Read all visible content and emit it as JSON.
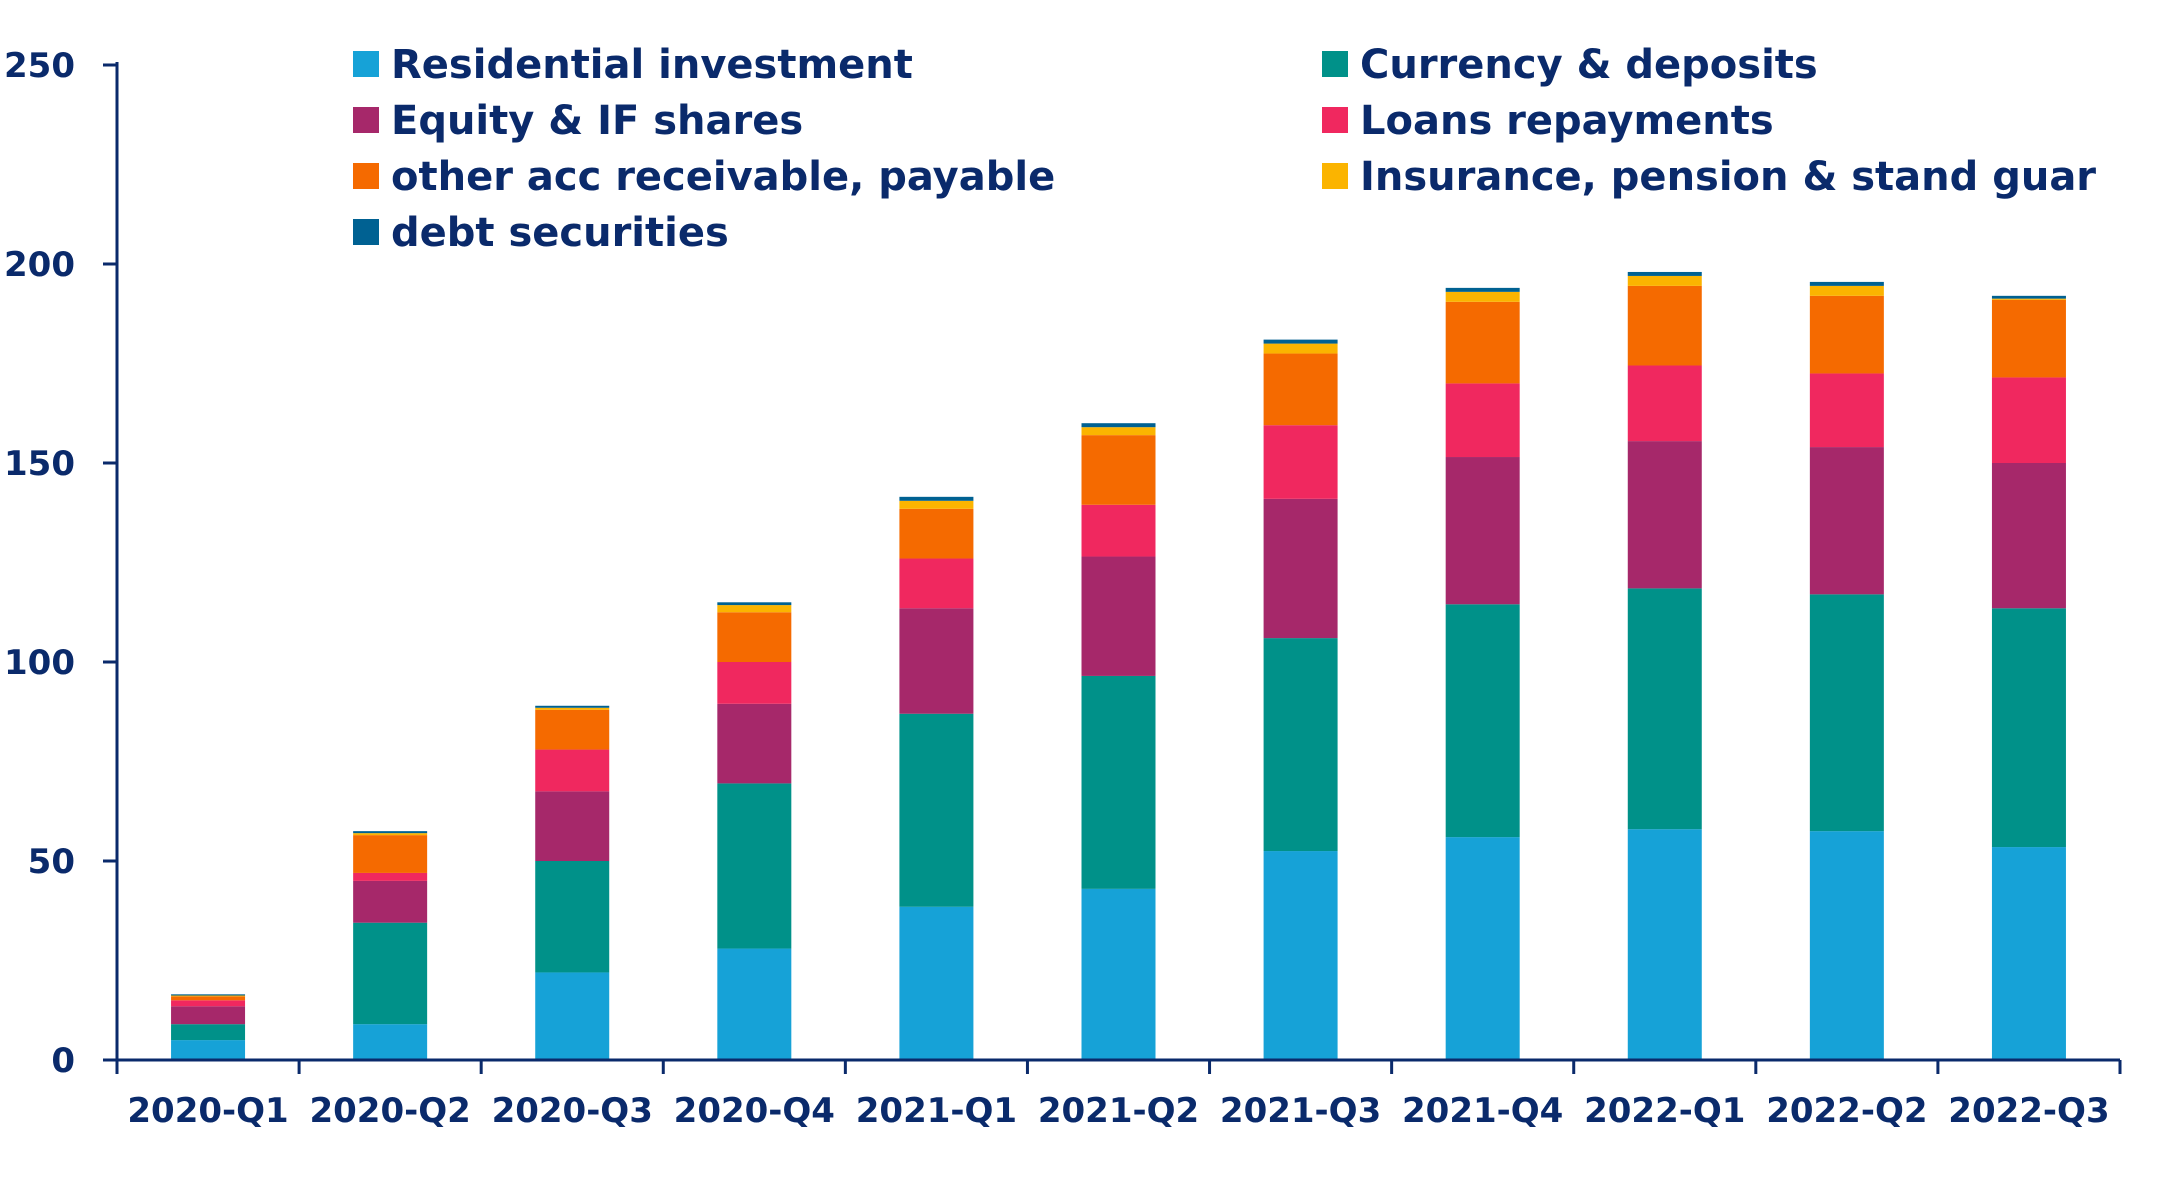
{
  "chart_data": {
    "type": "bar",
    "stacked": true,
    "categories": [
      "2020-Q1",
      "2020-Q2",
      "2020-Q3",
      "2020-Q4",
      "2021-Q1",
      "2021-Q2",
      "2021-Q3",
      "2021-Q4",
      "2022-Q1",
      "2022-Q2",
      "2022-Q3"
    ],
    "ylim": [
      0,
      250
    ],
    "yticks": [
      0,
      50,
      100,
      150,
      200,
      250
    ],
    "grid": false,
    "legend_position": "top",
    "series": [
      {
        "name": "Residential investment",
        "color": "#16a2d7",
        "values": [
          5,
          9,
          22,
          28,
          38.5,
          43,
          52.5,
          56,
          58,
          57.5,
          53.5
        ]
      },
      {
        "name": "Currency & deposits",
        "color": "#009189",
        "values": [
          4,
          25.5,
          28,
          41.5,
          48.5,
          53.5,
          53.5,
          58.5,
          60.5,
          59.5,
          60
        ]
      },
      {
        "name": "Equity & IF shares",
        "color": "#a6286a",
        "values": [
          4.5,
          10.5,
          17.5,
          20,
          26.5,
          30,
          35,
          37,
          37,
          37,
          36.5
        ]
      },
      {
        "name": "Loans repayments",
        "color": "#f0285f",
        "values": [
          1.5,
          2,
          10.5,
          10.5,
          12.5,
          13,
          18.5,
          18.5,
          19,
          18.5,
          21.5
        ]
      },
      {
        "name": "other acc receivable, payable",
        "color": "#f56a00",
        "values": [
          1,
          9.5,
          10,
          12.5,
          12.5,
          17.5,
          18,
          20.5,
          20,
          19.5,
          19.5
        ]
      },
      {
        "name": "Insurance, pension & stand guar",
        "color": "#fbb400",
        "values": [
          0.2,
          0.5,
          0.5,
          1.8,
          2,
          2,
          2.5,
          2.5,
          2.5,
          2.5,
          0.3
        ]
      },
      {
        "name": "debt securities",
        "color": "#006192",
        "values": [
          0.3,
          0.5,
          0.5,
          0.7,
          1,
          1,
          1,
          1,
          1,
          1,
          0.7
        ]
      }
    ]
  },
  "legend_order": [
    0,
    1,
    2,
    3,
    4,
    5,
    6
  ]
}
